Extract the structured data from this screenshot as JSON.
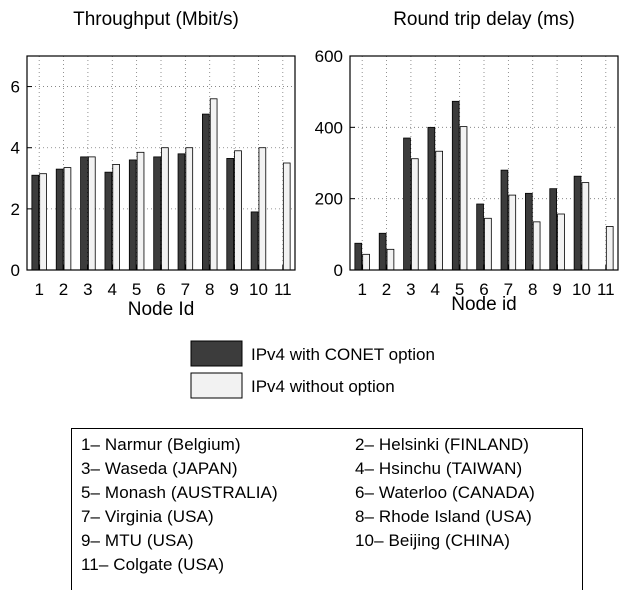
{
  "chart_data": [
    {
      "type": "bar",
      "title": "Throughput (Mbit/s)",
      "xlabel": "Node Id",
      "ylabel": "",
      "categories": [
        "1",
        "2",
        "3",
        "4",
        "5",
        "6",
        "7",
        "8",
        "9",
        "10",
        "11"
      ],
      "ylim": [
        0,
        7
      ],
      "yticks": [
        0,
        2,
        4,
        6
      ],
      "grid": true,
      "series": [
        {
          "name": "IPv4 with CONET option",
          "color": "#3c3c3c",
          "values": [
            3.1,
            3.3,
            3.7,
            3.2,
            3.6,
            3.7,
            3.8,
            5.1,
            3.65,
            1.9,
            0
          ]
        },
        {
          "name": "IPv4 without option",
          "color": "#f2f2f2",
          "values": [
            3.15,
            3.35,
            3.7,
            3.45,
            3.85,
            4.0,
            4.0,
            5.6,
            3.9,
            4.0,
            3.5
          ]
        }
      ]
    },
    {
      "type": "bar",
      "title": "Round trip delay (ms)",
      "xlabel": "Node id",
      "ylabel": "",
      "categories": [
        "1",
        "2",
        "3",
        "4",
        "5",
        "6",
        "7",
        "8",
        "9",
        "10",
        "11"
      ],
      "ylim": [
        0,
        600
      ],
      "yticks": [
        0,
        200,
        400,
        600
      ],
      "grid": true,
      "series": [
        {
          "name": "IPv4 with CONET option",
          "color": "#3c3c3c",
          "values": [
            75,
            103,
            370,
            400,
            473,
            185,
            280,
            215,
            228,
            263,
            0
          ]
        },
        {
          "name": "IPv4 without option",
          "color": "#f2f2f2",
          "values": [
            44,
            58,
            312,
            333,
            402,
            145,
            210,
            135,
            157,
            245,
            122
          ]
        }
      ]
    }
  ],
  "legend": {
    "entries": [
      {
        "label": "IPv4 with CONET option",
        "color": "#3c3c3c"
      },
      {
        "label": "IPv4 without option",
        "color": "#f2f2f2"
      }
    ]
  },
  "sites": [
    "1– Narmur (Belgium)",
    "2– Helsinki (FINLAND)",
    "3– Waseda (JAPAN)",
    "4– Hsinchu (TAIWAN)",
    "5– Monash (AUSTRALIA)",
    "6– Waterloo (CANADA)",
    "7– Virginia (USA)",
    "8– Rhode Island (USA)",
    "9– MTU (USA)",
    "10– Beijing (CHINA)",
    "11– Colgate (USA)"
  ]
}
